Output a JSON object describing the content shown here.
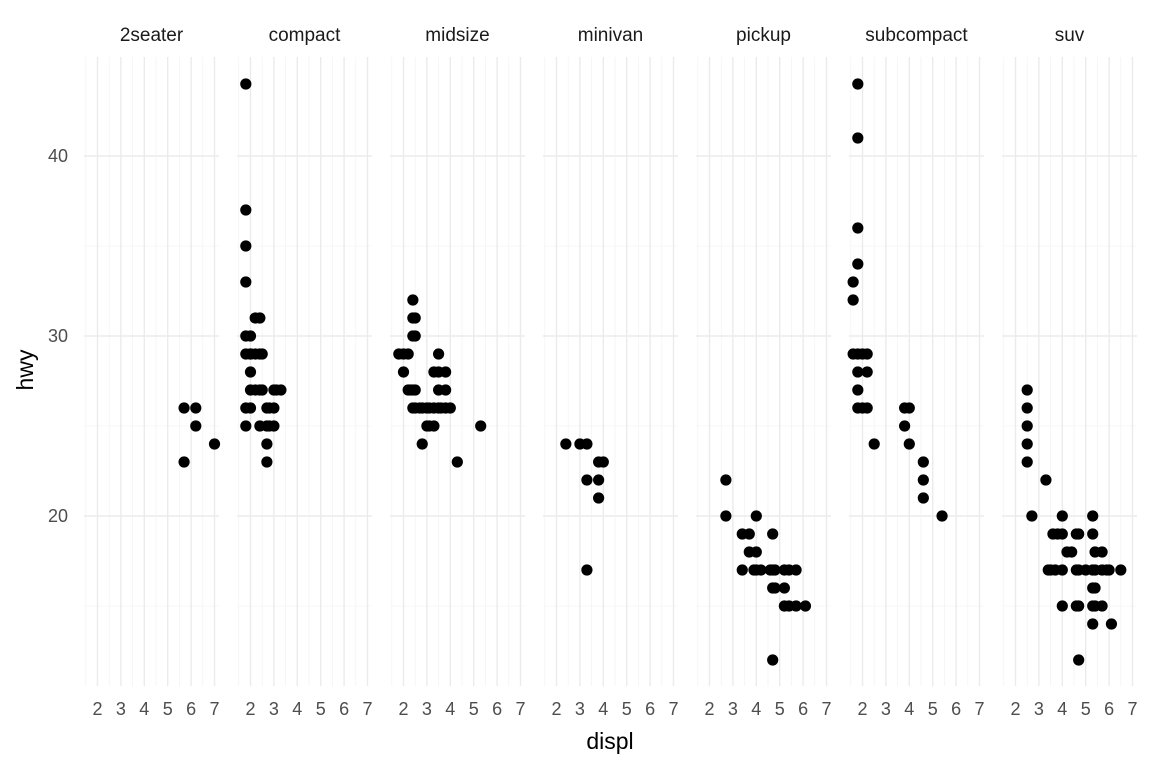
{
  "chart_data": {
    "type": "scatter",
    "facet_by": "class",
    "xlabel": "displ",
    "ylabel": "hwy",
    "xlim": [
      1.6,
      7.0
    ],
    "ylim": [
      12,
      44
    ],
    "x_ticks": [
      2,
      3,
      4,
      5,
      6,
      7
    ],
    "y_ticks": [
      20,
      30,
      40
    ],
    "grid": true,
    "point_color": "#000000",
    "panels": [
      {
        "name": "2seater",
        "points": [
          [
            5.7,
            26
          ],
          [
            5.7,
            23
          ],
          [
            6.2,
            26
          ],
          [
            6.2,
            25
          ],
          [
            7.0,
            24
          ]
        ]
      },
      {
        "name": "compact",
        "points": [
          [
            1.8,
            44
          ],
          [
            1.8,
            37
          ],
          [
            1.8,
            35
          ],
          [
            1.8,
            33
          ],
          [
            1.8,
            30
          ],
          [
            1.8,
            29
          ],
          [
            1.8,
            26
          ],
          [
            1.8,
            25
          ],
          [
            2.0,
            30
          ],
          [
            2.0,
            29
          ],
          [
            2.0,
            28
          ],
          [
            2.0,
            27
          ],
          [
            2.0,
            26
          ],
          [
            2.0,
            29
          ],
          [
            2.2,
            31
          ],
          [
            2.2,
            29
          ],
          [
            2.2,
            27
          ],
          [
            2.4,
            31
          ],
          [
            2.4,
            29
          ],
          [
            2.4,
            27
          ],
          [
            2.4,
            25
          ],
          [
            2.5,
            29
          ],
          [
            2.5,
            27
          ],
          [
            2.7,
            26
          ],
          [
            2.7,
            25
          ],
          [
            2.7,
            24
          ],
          [
            2.7,
            23
          ],
          [
            2.8,
            26
          ],
          [
            2.8,
            25
          ],
          [
            3.0,
            27
          ],
          [
            3.0,
            26
          ],
          [
            3.0,
            25
          ],
          [
            3.1,
            27
          ],
          [
            3.3,
            27
          ]
        ]
      },
      {
        "name": "midsize",
        "points": [
          [
            1.8,
            29
          ],
          [
            2.0,
            29
          ],
          [
            2.0,
            28
          ],
          [
            2.2,
            29
          ],
          [
            2.2,
            27
          ],
          [
            2.3,
            27
          ],
          [
            2.4,
            32
          ],
          [
            2.4,
            31
          ],
          [
            2.4,
            30
          ],
          [
            2.4,
            27
          ],
          [
            2.4,
            26
          ],
          [
            2.5,
            31
          ],
          [
            2.5,
            30
          ],
          [
            2.5,
            27
          ],
          [
            2.5,
            26
          ],
          [
            2.7,
            26
          ],
          [
            2.8,
            26
          ],
          [
            2.8,
            24
          ],
          [
            3.0,
            26
          ],
          [
            3.0,
            25
          ],
          [
            3.1,
            26
          ],
          [
            3.1,
            25
          ],
          [
            3.3,
            28
          ],
          [
            3.3,
            26
          ],
          [
            3.3,
            25
          ],
          [
            3.5,
            29
          ],
          [
            3.5,
            28
          ],
          [
            3.5,
            27
          ],
          [
            3.5,
            26
          ],
          [
            3.6,
            26
          ],
          [
            3.8,
            28
          ],
          [
            3.8,
            27
          ],
          [
            3.8,
            26
          ],
          [
            4.0,
            26
          ],
          [
            4.3,
            23
          ],
          [
            5.3,
            25
          ]
        ]
      },
      {
        "name": "minivan",
        "points": [
          [
            2.4,
            24
          ],
          [
            3.0,
            24
          ],
          [
            3.3,
            24
          ],
          [
            3.3,
            22
          ],
          [
            3.3,
            17
          ],
          [
            3.8,
            23
          ],
          [
            3.8,
            22
          ],
          [
            3.8,
            21
          ],
          [
            4.0,
            23
          ]
        ]
      },
      {
        "name": "pickup",
        "points": [
          [
            2.7,
            22
          ],
          [
            2.7,
            20
          ],
          [
            3.4,
            19
          ],
          [
            3.4,
            17
          ],
          [
            3.7,
            19
          ],
          [
            3.7,
            18
          ],
          [
            3.9,
            17
          ],
          [
            4.0,
            20
          ],
          [
            4.0,
            18
          ],
          [
            4.0,
            17
          ],
          [
            4.2,
            17
          ],
          [
            4.6,
            17
          ],
          [
            4.7,
            19
          ],
          [
            4.7,
            17
          ],
          [
            4.7,
            16
          ],
          [
            4.7,
            12
          ],
          [
            4.8,
            17
          ],
          [
            4.8,
            16
          ],
          [
            5.2,
            17
          ],
          [
            5.2,
            16
          ],
          [
            5.2,
            15
          ],
          [
            5.4,
            15
          ],
          [
            5.4,
            17
          ],
          [
            5.7,
            17
          ],
          [
            5.7,
            15
          ],
          [
            6.1,
            15
          ]
        ]
      },
      {
        "name": "subcompact",
        "points": [
          [
            1.6,
            33
          ],
          [
            1.6,
            32
          ],
          [
            1.6,
            29
          ],
          [
            1.8,
            44
          ],
          [
            1.8,
            41
          ],
          [
            1.8,
            36
          ],
          [
            1.8,
            34
          ],
          [
            1.8,
            29
          ],
          [
            1.8,
            28
          ],
          [
            1.8,
            27
          ],
          [
            1.8,
            26
          ],
          [
            2.0,
            29
          ],
          [
            2.0,
            26
          ],
          [
            2.2,
            29
          ],
          [
            2.2,
            28
          ],
          [
            2.2,
            26
          ],
          [
            2.5,
            24
          ],
          [
            3.8,
            26
          ],
          [
            3.8,
            25
          ],
          [
            4.0,
            26
          ],
          [
            4.0,
            24
          ],
          [
            4.6,
            23
          ],
          [
            4.6,
            22
          ],
          [
            4.6,
            21
          ],
          [
            5.4,
            20
          ]
        ]
      },
      {
        "name": "suv",
        "points": [
          [
            2.5,
            27
          ],
          [
            2.5,
            26
          ],
          [
            2.5,
            25
          ],
          [
            2.5,
            24
          ],
          [
            2.5,
            23
          ],
          [
            2.7,
            20
          ],
          [
            3.3,
            22
          ],
          [
            3.4,
            17
          ],
          [
            3.5,
            17
          ],
          [
            3.6,
            19
          ],
          [
            3.7,
            17
          ],
          [
            3.8,
            19
          ],
          [
            4.0,
            20
          ],
          [
            4.0,
            19
          ],
          [
            4.0,
            17
          ],
          [
            4.0,
            15
          ],
          [
            4.2,
            18
          ],
          [
            4.4,
            18
          ],
          [
            4.6,
            19
          ],
          [
            4.6,
            17
          ],
          [
            4.6,
            15
          ],
          [
            4.7,
            19
          ],
          [
            4.7,
            17
          ],
          [
            4.7,
            15
          ],
          [
            4.7,
            12
          ],
          [
            5.0,
            17
          ],
          [
            5.3,
            20
          ],
          [
            5.3,
            19
          ],
          [
            5.3,
            17
          ],
          [
            5.3,
            16
          ],
          [
            5.3,
            15
          ],
          [
            5.3,
            14
          ],
          [
            5.4,
            18
          ],
          [
            5.4,
            17
          ],
          [
            5.4,
            16
          ],
          [
            5.4,
            15
          ],
          [
            5.7,
            18
          ],
          [
            5.7,
            17
          ],
          [
            5.7,
            15
          ],
          [
            5.9,
            17
          ],
          [
            6.0,
            17
          ],
          [
            6.1,
            14
          ],
          [
            6.5,
            17
          ]
        ]
      }
    ]
  }
}
